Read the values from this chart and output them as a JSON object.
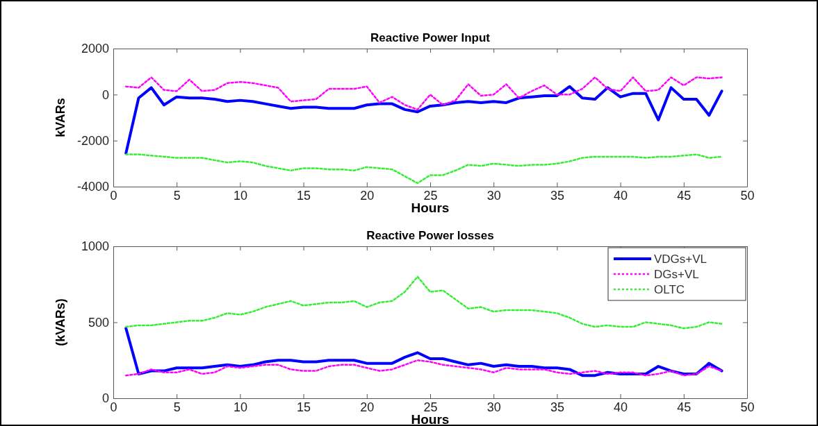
{
  "chart_data": [
    {
      "type": "line",
      "title": "Reactive Power Input",
      "xlabel": "Hours",
      "ylabel": "kVARs",
      "x": [
        1,
        2,
        3,
        4,
        5,
        6,
        7,
        8,
        9,
        10,
        11,
        12,
        13,
        14,
        15,
        16,
        17,
        18,
        19,
        20,
        21,
        22,
        23,
        24,
        25,
        26,
        27,
        28,
        29,
        30,
        31,
        32,
        33,
        34,
        35,
        36,
        37,
        38,
        39,
        40,
        41,
        42,
        43,
        44,
        45,
        46,
        47,
        48
      ],
      "xlim": [
        0,
        50
      ],
      "xticks": [
        0,
        5,
        10,
        15,
        20,
        25,
        30,
        35,
        40,
        45,
        50
      ],
      "ylim": [
        -4000,
        2000
      ],
      "yticks": [
        -4000,
        -2000,
        0,
        2000
      ],
      "grid": false,
      "legend": false,
      "series": [
        {
          "color": "#0000ff",
          "line_style": "solid",
          "values": [
            -2550,
            -150,
            300,
            -450,
            -100,
            -150,
            -150,
            -200,
            -300,
            -250,
            -300,
            -400,
            -500,
            -600,
            -550,
            -550,
            -600,
            -600,
            -600,
            -450,
            -400,
            -400,
            -650,
            -750,
            -500,
            -450,
            -350,
            -300,
            -350,
            -300,
            -350,
            -150,
            -100,
            -50,
            -50,
            350,
            -150,
            -200,
            300,
            -100,
            50,
            50,
            -1100,
            300,
            -200,
            -200,
            -900,
            150
          ]
        },
        {
          "color": "#ff00ff",
          "line_style": "dotted",
          "values": [
            350,
            300,
            750,
            200,
            150,
            650,
            150,
            200,
            500,
            550,
            500,
            400,
            300,
            -300,
            -250,
            -200,
            250,
            250,
            250,
            350,
            -350,
            -100,
            -450,
            -650,
            0,
            -450,
            -250,
            450,
            -50,
            0,
            450,
            -150,
            150,
            400,
            0,
            0,
            250,
            750,
            250,
            150,
            750,
            150,
            200,
            750,
            400,
            750,
            700,
            750
          ]
        },
        {
          "color": "#33ee33",
          "line_style": "dotted",
          "values": [
            -2600,
            -2600,
            -2650,
            -2700,
            -2750,
            -2750,
            -2750,
            -2850,
            -2950,
            -2900,
            -2950,
            -3100,
            -3200,
            -3300,
            -3200,
            -3200,
            -3250,
            -3250,
            -3300,
            -3150,
            -3200,
            -3250,
            -3550,
            -3850,
            -3500,
            -3500,
            -3300,
            -3050,
            -3100,
            -3000,
            -3050,
            -3100,
            -3050,
            -3050,
            -3000,
            -2900,
            -2750,
            -2700,
            -2700,
            -2700,
            -2700,
            -2750,
            -2700,
            -2700,
            -2650,
            -2600,
            -2750,
            -2700
          ]
        }
      ]
    },
    {
      "type": "line",
      "title": "Reactive Power losses",
      "xlabel": "Hours",
      "ylabel": "(kVARs)",
      "x": [
        1,
        2,
        3,
        4,
        5,
        6,
        7,
        8,
        9,
        10,
        11,
        12,
        13,
        14,
        15,
        16,
        17,
        18,
        19,
        20,
        21,
        22,
        23,
        24,
        25,
        26,
        27,
        28,
        29,
        30,
        31,
        32,
        33,
        34,
        35,
        36,
        37,
        38,
        39,
        40,
        41,
        42,
        43,
        44,
        45,
        46,
        47,
        48
      ],
      "xlim": [
        0,
        50
      ],
      "xticks": [
        0,
        5,
        10,
        15,
        20,
        25,
        30,
        35,
        40,
        45,
        50
      ],
      "ylim": [
        0,
        1000
      ],
      "yticks": [
        0,
        500,
        1000
      ],
      "grid": false,
      "legend": "top right",
      "series": [
        {
          "name": "VDGs+VL",
          "color": "#0000ff",
          "line_style": "solid",
          "values": [
            460,
            160,
            180,
            180,
            200,
            200,
            200,
            210,
            220,
            210,
            220,
            240,
            250,
            250,
            240,
            240,
            250,
            250,
            250,
            230,
            230,
            230,
            270,
            300,
            260,
            260,
            240,
            220,
            230,
            210,
            220,
            210,
            210,
            200,
            200,
            190,
            150,
            150,
            170,
            160,
            160,
            160,
            210,
            180,
            160,
            160,
            230,
            180
          ]
        },
        {
          "name": "DGs+VL",
          "color": "#ff00ff",
          "line_style": "dotted",
          "values": [
            150,
            160,
            190,
            170,
            170,
            190,
            160,
            170,
            210,
            200,
            210,
            220,
            220,
            190,
            180,
            180,
            210,
            220,
            220,
            200,
            180,
            190,
            220,
            250,
            240,
            220,
            210,
            200,
            190,
            170,
            200,
            190,
            190,
            190,
            170,
            160,
            170,
            180,
            160,
            170,
            170,
            150,
            160,
            180,
            150,
            160,
            210,
            180
          ]
        },
        {
          "name": "OLTC",
          "color": "#33ee33",
          "line_style": "dotted",
          "values": [
            470,
            480,
            480,
            490,
            500,
            510,
            510,
            530,
            560,
            550,
            570,
            600,
            620,
            640,
            610,
            620,
            630,
            630,
            640,
            600,
            630,
            640,
            700,
            800,
            700,
            710,
            650,
            590,
            600,
            570,
            580,
            580,
            580,
            570,
            560,
            530,
            490,
            470,
            480,
            470,
            470,
            500,
            490,
            480,
            460,
            470,
            500,
            490
          ]
        }
      ]
    }
  ]
}
